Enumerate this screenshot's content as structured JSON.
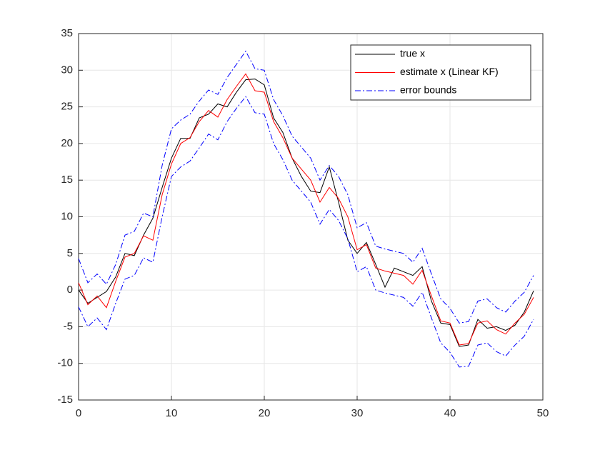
{
  "chart_data": {
    "type": "line",
    "x": [
      0,
      1,
      2,
      3,
      4,
      5,
      6,
      7,
      8,
      9,
      10,
      11,
      12,
      13,
      14,
      15,
      16,
      17,
      18,
      19,
      20,
      21,
      22,
      23,
      24,
      25,
      26,
      27,
      28,
      29,
      30,
      31,
      32,
      33,
      34,
      35,
      36,
      37,
      38,
      39,
      40,
      41,
      42,
      43,
      44,
      45,
      46,
      47,
      48,
      49
    ],
    "series": [
      {
        "name": "true x",
        "color": "#000000",
        "style": "solid",
        "values": [
          0,
          -1.8,
          -1,
          -0.2,
          1.8,
          5,
          4.7,
          7.5,
          9.8,
          14,
          18,
          20.7,
          20.7,
          23.5,
          24,
          25.4,
          25,
          27,
          28.7,
          28.8,
          28,
          23.5,
          21.5,
          18,
          15.5,
          13.5,
          13.3,
          16.8,
          12,
          6.8,
          5,
          6.5,
          3.5,
          0.4,
          3,
          2.5,
          2,
          3.2,
          -1.5,
          -4.5,
          -4.7,
          -7.7,
          -7.5,
          -4,
          -5.2,
          -5,
          -5.5,
          -4.8,
          -3,
          -0.1
        ]
      },
      {
        "name": "estimate x (Linear KF)",
        "color": "#ff0000",
        "style": "solid",
        "values": [
          1,
          -2,
          -0.8,
          -2.4,
          1.2,
          4.5,
          5,
          7.4,
          6.8,
          13,
          17.2,
          20,
          20.8,
          23,
          24.5,
          23.6,
          26,
          27.8,
          29.5,
          27.2,
          27,
          23,
          20.8,
          18,
          16.5,
          15,
          12,
          14,
          12.5,
          10,
          5.5,
          6.2,
          3,
          2.6,
          2.3,
          2,
          0.8,
          2.7,
          -0.8,
          -4.2,
          -4.5,
          -7.5,
          -7.3,
          -4.5,
          -4.2,
          -5.4,
          -6,
          -4.5,
          -3.3,
          -1
        ]
      },
      {
        "name": "error bounds",
        "color": "#0000ff",
        "style": "dashdot",
        "values": [
          4.3,
          1,
          2.2,
          0.8,
          3.5,
          7.5,
          8,
          10.5,
          10,
          17,
          22,
          23.2,
          24,
          25.8,
          27.3,
          26.7,
          29,
          30.8,
          32.6,
          30.2,
          30,
          26,
          23.8,
          21,
          19.5,
          18,
          15,
          17,
          15.5,
          13,
          8.5,
          9.2,
          6,
          5.6,
          5.3,
          5,
          3.8,
          5.7,
          2.2,
          -1.2,
          -2.5,
          -4.5,
          -4.3,
          -1.5,
          -1.2,
          -2.4,
          -3,
          -1.5,
          -0.3,
          2
        ],
        "lower": [
          -2.3,
          -5,
          -3.8,
          -5.4,
          -1.8,
          1.5,
          2,
          4.4,
          3.8,
          10,
          15.5,
          16.8,
          17.6,
          19.4,
          21.3,
          20.5,
          23,
          24.8,
          26.4,
          24.2,
          24,
          20,
          17.8,
          15,
          13.5,
          12,
          9,
          11,
          9.5,
          7,
          2.5,
          3.2,
          0,
          -0.4,
          -0.7,
          -1,
          -2.2,
          -0.3,
          -3.8,
          -7.2,
          -8.5,
          -10.5,
          -10.4,
          -7.5,
          -7.2,
          -8.4,
          -9,
          -7.5,
          -6.3,
          -4
        ]
      }
    ],
    "xlim": [
      0,
      50
    ],
    "xticks": [
      0,
      10,
      20,
      30,
      40,
      50
    ],
    "ylim": [
      -15,
      35
    ],
    "yticks": [
      -15,
      -10,
      -5,
      0,
      5,
      10,
      15,
      20,
      25,
      30,
      35
    ],
    "grid": true,
    "legend": "northeast"
  }
}
